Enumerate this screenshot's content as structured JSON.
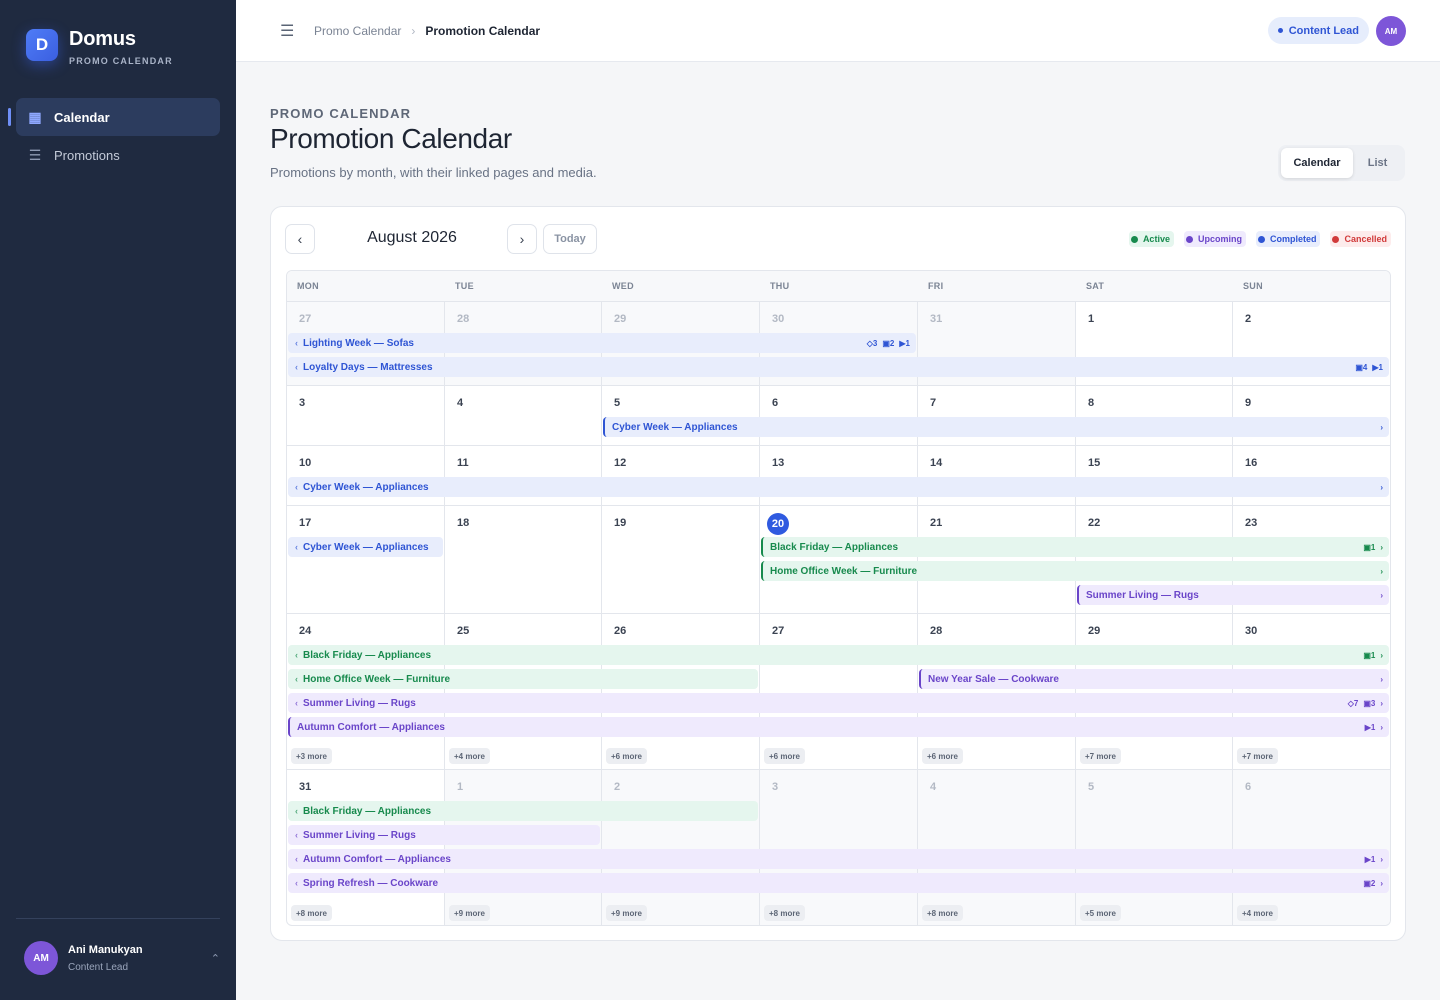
{
  "brand": {
    "logo_letter": "D",
    "name": "Domus",
    "subtitle": "PROMO CALENDAR"
  },
  "sidebar": {
    "items": [
      {
        "label": "Calendar",
        "icon": "calendar-icon",
        "active": true
      },
      {
        "label": "Promotions",
        "icon": "list-icon",
        "active": false
      }
    ]
  },
  "user": {
    "initials": "AM",
    "name": "Ani Manukyan",
    "role": "Content Lead"
  },
  "topbar": {
    "breadcrumb": [
      "Promo Calendar",
      "Promotion Calendar"
    ],
    "role_badge": "Content Lead",
    "avatar_initials": "AM"
  },
  "page": {
    "eyebrow": "PROMO CALENDAR",
    "title": "Promotion Calendar",
    "description": "Promotions by month, with their linked pages and media.",
    "view_toggle": [
      "Calendar",
      "List"
    ],
    "active_view": "Calendar"
  },
  "calendar": {
    "month_label": "August 2026",
    "today_label": "Today",
    "prev_icon": "chevron-left-icon",
    "next_icon": "chevron-right-icon",
    "legend": [
      {
        "label": "Active",
        "color": "#178a4d",
        "bg": "#e5f6ee"
      },
      {
        "label": "Upcoming",
        "color": "#6a45c9",
        "bg": "#efeafd"
      },
      {
        "label": "Completed",
        "color": "#2f55d4",
        "bg": "#e8edfc"
      },
      {
        "label": "Cancelled",
        "color": "#d13a3a",
        "bg": "#fdecec"
      }
    ],
    "weekdays": [
      "MON",
      "TUE",
      "WED",
      "THU",
      "FRI",
      "SAT",
      "SUN"
    ],
    "weeks": [
      {
        "days": [
          {
            "n": "27",
            "out": true
          },
          {
            "n": "28",
            "out": true
          },
          {
            "n": "29",
            "out": true
          },
          {
            "n": "30",
            "out": true
          },
          {
            "n": "31",
            "out": true
          },
          {
            "n": "1"
          },
          {
            "n": "2"
          }
        ],
        "events": [
          {
            "title": "Lighting Week — Sofas",
            "color": "blue",
            "start": 0,
            "span": 4,
            "lane": 0,
            "cont_left": true,
            "cont_right": false,
            "meta": [
              "◇3",
              "▣2",
              "▶1"
            ]
          },
          {
            "title": "Loyalty Days — Mattresses",
            "color": "blue",
            "start": 0,
            "span": 7,
            "lane": 1,
            "cont_left": true,
            "cont_right": false,
            "meta": [
              "▣4",
              "▶1"
            ]
          }
        ],
        "more": []
      },
      {
        "days": [
          {
            "n": "3"
          },
          {
            "n": "4"
          },
          {
            "n": "5"
          },
          {
            "n": "6"
          },
          {
            "n": "7"
          },
          {
            "n": "8"
          },
          {
            "n": "9"
          }
        ],
        "events": [
          {
            "title": "Cyber Week — Appliances",
            "color": "blue",
            "start": 2,
            "span": 5,
            "lane": 0,
            "cont_left": false,
            "cont_right": true,
            "meta": []
          }
        ],
        "more": []
      },
      {
        "days": [
          {
            "n": "10"
          },
          {
            "n": "11"
          },
          {
            "n": "12"
          },
          {
            "n": "13"
          },
          {
            "n": "14"
          },
          {
            "n": "15"
          },
          {
            "n": "16"
          }
        ],
        "events": [
          {
            "title": "Cyber Week — Appliances",
            "color": "blue",
            "start": 0,
            "span": 7,
            "lane": 0,
            "cont_left": true,
            "cont_right": true,
            "meta": []
          }
        ],
        "more": []
      },
      {
        "days": [
          {
            "n": "17"
          },
          {
            "n": "18"
          },
          {
            "n": "19"
          },
          {
            "n": "20",
            "today": true
          },
          {
            "n": "21"
          },
          {
            "n": "22"
          },
          {
            "n": "23"
          }
        ],
        "events": [
          {
            "title": "Cyber Week — Appliances",
            "color": "blue",
            "start": 0,
            "span": 1,
            "lane": 0,
            "cont_left": true,
            "cont_right": false,
            "meta": []
          },
          {
            "title": "Black Friday — Appliances",
            "color": "green",
            "start": 3,
            "span": 4,
            "lane": 0,
            "cont_left": false,
            "cont_right": true,
            "meta": [
              "▣1"
            ]
          },
          {
            "title": "Home Office Week — Furniture",
            "color": "green",
            "start": 3,
            "span": 4,
            "lane": 1,
            "cont_left": false,
            "cont_right": true,
            "meta": []
          },
          {
            "title": "Summer Living — Rugs",
            "color": "purple",
            "start": 5,
            "span": 2,
            "lane": 2,
            "cont_left": false,
            "cont_right": true,
            "meta": []
          }
        ],
        "more": []
      },
      {
        "days": [
          {
            "n": "24"
          },
          {
            "n": "25"
          },
          {
            "n": "26"
          },
          {
            "n": "27"
          },
          {
            "n": "28"
          },
          {
            "n": "29"
          },
          {
            "n": "30"
          }
        ],
        "events": [
          {
            "title": "Black Friday — Appliances",
            "color": "green",
            "start": 0,
            "span": 7,
            "lane": 0,
            "cont_left": true,
            "cont_right": true,
            "meta": [
              "▣1"
            ]
          },
          {
            "title": "Home Office Week — Furniture",
            "color": "green",
            "start": 0,
            "span": 3,
            "lane": 1,
            "cont_left": true,
            "cont_right": false,
            "meta": []
          },
          {
            "title": "New Year Sale — Cookware",
            "color": "purple",
            "start": 4,
            "span": 3,
            "lane": 1,
            "cont_left": false,
            "cont_right": true,
            "meta": []
          },
          {
            "title": "Summer Living — Rugs",
            "color": "purple",
            "start": 0,
            "span": 7,
            "lane": 2,
            "cont_left": true,
            "cont_right": true,
            "meta": [
              "◇7",
              "▣3"
            ]
          },
          {
            "title": "Autumn Comfort — Appliances",
            "color": "purple",
            "start": 0,
            "span": 7,
            "lane": 3,
            "cont_left": false,
            "cont_right": true,
            "meta": [
              "▶1"
            ]
          }
        ],
        "more": [
          "+3 more",
          "+4 more",
          "+6 more",
          "+6 more",
          "+6 more",
          "+7 more",
          "+7 more"
        ]
      },
      {
        "days": [
          {
            "n": "31"
          },
          {
            "n": "1",
            "out": true
          },
          {
            "n": "2",
            "out": true
          },
          {
            "n": "3",
            "out": true
          },
          {
            "n": "4",
            "out": true
          },
          {
            "n": "5",
            "out": true
          },
          {
            "n": "6",
            "out": true
          }
        ],
        "events": [
          {
            "title": "Black Friday — Appliances",
            "color": "green",
            "start": 0,
            "span": 3,
            "lane": 0,
            "cont_left": true,
            "cont_right": false,
            "meta": []
          },
          {
            "title": "Summer Living — Rugs",
            "color": "purple",
            "start": 0,
            "span": 2,
            "lane": 1,
            "cont_left": true,
            "cont_right": false,
            "meta": []
          },
          {
            "title": "Autumn Comfort — Appliances",
            "color": "purple",
            "start": 0,
            "span": 7,
            "lane": 2,
            "cont_left": true,
            "cont_right": true,
            "meta": [
              "▶1"
            ]
          },
          {
            "title": "Spring Refresh — Cookware",
            "color": "purple",
            "start": 0,
            "span": 7,
            "lane": 3,
            "cont_left": true,
            "cont_right": true,
            "meta": [
              "▣2"
            ]
          }
        ],
        "more": [
          "+8 more",
          "+9 more",
          "+9 more",
          "+8 more",
          "+8 more",
          "+5 more",
          "+4 more"
        ]
      }
    ]
  }
}
